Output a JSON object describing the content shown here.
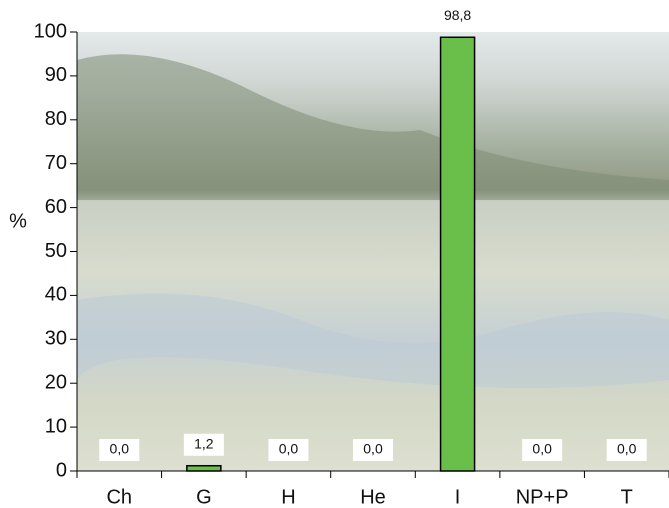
{
  "chart_data": {
    "type": "bar",
    "y_label": "%",
    "categories": [
      "Ch",
      "G",
      "H",
      "He",
      "I",
      "NP+P",
      "T"
    ],
    "values": [
      0,
      1.2,
      0,
      0,
      98.8,
      0,
      0
    ],
    "value_labels": [
      "0,0",
      "1,2",
      "0,0",
      "0,0",
      "98,8",
      "0,0",
      "0,0"
    ],
    "color": "#6abf4b",
    "ylim": [
      0,
      100
    ],
    "yticks": [
      0,
      10,
      20,
      30,
      40,
      50,
      60,
      70,
      80,
      90,
      100
    ]
  }
}
